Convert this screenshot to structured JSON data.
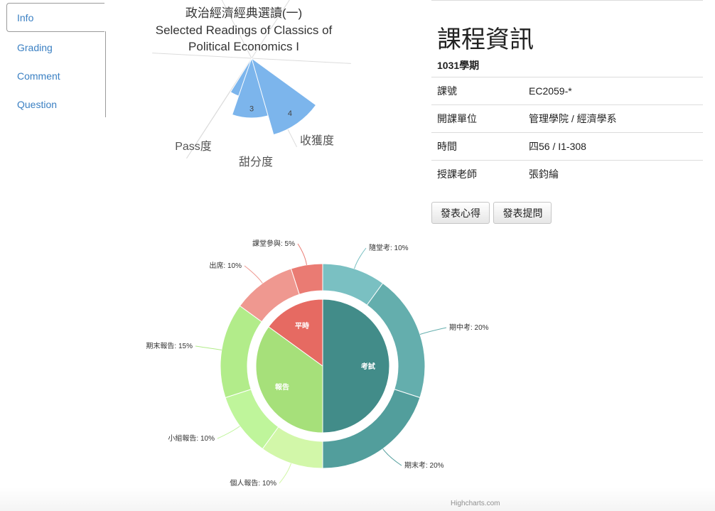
{
  "sidebar": {
    "tabs": [
      {
        "label": "Info"
      },
      {
        "label": "Grading"
      },
      {
        "label": "Comment"
      },
      {
        "label": "Question"
      }
    ]
  },
  "course": {
    "heading": "課程資訊",
    "term": "1031學期",
    "rows": [
      {
        "key": "課號",
        "value": "EC2059-*"
      },
      {
        "key": "開課單位",
        "value": "管理學院 / 經濟學系"
      },
      {
        "key": "時間",
        "value": "四56 / I1-308"
      },
      {
        "key": "授課老師",
        "value": "張鈞綸"
      }
    ],
    "buttons": {
      "share": "發表心得",
      "ask": "發表提問"
    }
  },
  "chart_data": [
    {
      "type": "polar",
      "title": "政治經濟經典選讀(一)",
      "subtitle_lines": [
        "Selected Readings of Classics of",
        "Political Economics I"
      ],
      "categories": [
        "Pass度",
        "甜分度",
        "收獲度"
      ],
      "values": [
        2,
        3,
        4
      ],
      "ylim": [
        0,
        5
      ],
      "color": "#7cb5ec"
    },
    {
      "type": "pie",
      "inner": [
        {
          "name": "平時",
          "value": 15,
          "color": "#e66a62"
        },
        {
          "name": "考試",
          "value": 50,
          "color": "#428c89"
        },
        {
          "name": "報告",
          "value": 35,
          "color": "#a6e07a"
        }
      ],
      "outer": [
        {
          "name": "隨堂考: 10%",
          "value": 10,
          "color": "#7ac0c2"
        },
        {
          "name": "期中考: 20%",
          "value": 20,
          "color": "#64aead"
        },
        {
          "name": "期末考: 20%",
          "value": 20,
          "color": "#529e9c"
        },
        {
          "name": "個人報告: 10%",
          "value": 10,
          "color": "#d2f7a9"
        },
        {
          "name": "小組報告: 10%",
          "value": 10,
          "color": "#bff59b"
        },
        {
          "name": "期末報告: 15%",
          "value": 15,
          "color": "#b2ec8a"
        },
        {
          "name": "出席: 10%",
          "value": 10,
          "color": "#ef9890"
        },
        {
          "name": "課堂參與: 5%",
          "value": 5,
          "color": "#ea7b73"
        }
      ],
      "credits": "Highcharts.com"
    }
  ]
}
